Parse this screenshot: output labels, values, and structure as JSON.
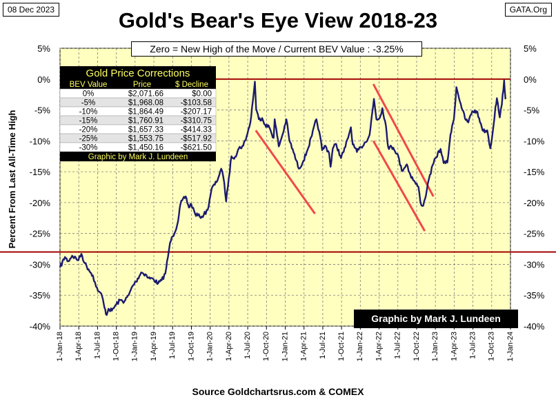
{
  "header": {
    "date": "08 Dec 2023",
    "site": "GATA.Org",
    "title": "Gold's Bear's Eye View 2018-23",
    "subtitle": "Zero = New High of the Move / Current  BEV Value : -3.25%",
    "credit": "Graphic by Mark J. Lundeen",
    "source": "Source Goldchartsrus.com & COMEX",
    "ylabel": "Percent  From  Last  All-Time  High"
  },
  "table": {
    "title": "Gold Price Corrections",
    "columns": [
      "BEV Value",
      "Price",
      "$ Decline"
    ],
    "rows": [
      [
        "0%",
        "$2,071.66",
        "$0.00"
      ],
      [
        "-5%",
        "$1,968.08",
        "-$103.58"
      ],
      [
        "-10%",
        "$1,864.49",
        "-$207.17"
      ],
      [
        "-15%",
        "$1,760.91",
        "-$310.75"
      ],
      [
        "-20%",
        "$1,657.33",
        "-$414.33"
      ],
      [
        "-25%",
        "$1,553.75",
        "-$517.92"
      ],
      [
        "-30%",
        "$1,450.16",
        "-$621.50"
      ]
    ],
    "footer": "Graphic by Mark J. Lundeen"
  },
  "colors": {
    "plot_bg": "#FFFFC0",
    "series": "#1A1A6E",
    "hline": "#A00000",
    "trend": "#F04848",
    "grid": "#7A7A7A"
  },
  "chart_data": {
    "type": "line",
    "title": "Gold's Bear's Eye View 2018-23",
    "ylabel": "Percent  From  Last  All-Time  High",
    "ylim": [
      -40,
      5
    ],
    "yticks": [
      5,
      0,
      -5,
      -10,
      -15,
      -20,
      -25,
      -30,
      -35,
      -40
    ],
    "ytick_labels": [
      "5%",
      "0%",
      "-5%",
      "-10%",
      "-15%",
      "-20%",
      "-25%",
      "-30%",
      "-35%",
      "-40%"
    ],
    "xlim": [
      "2018-01-01",
      "2024-01-01"
    ],
    "xtick_labels": [
      "1-Jan-18",
      "1-Apr-18",
      "1-Jul-18",
      "1-Oct-18",
      "1-Jan-19",
      "1-Apr-19",
      "1-Jul-19",
      "1-Oct-19",
      "1-Jan-20",
      "1-Apr-20",
      "1-Jul-20",
      "1-Oct-20",
      "1-Jan-21",
      "1-Apr-21",
      "1-Jul-21",
      "1-Oct-21",
      "1-Jan-22",
      "1-Apr-22",
      "1-Jul-22",
      "1-Oct-22",
      "1-Jan-23",
      "1-Apr-23",
      "1-Jul-23",
      "1-Oct-23",
      "1-Jan-24"
    ],
    "grid": true,
    "series": [
      {
        "name": "",
        "x": [
          "2018-01-01",
          "2018-01-25",
          "2018-02-10",
          "2018-03-01",
          "2018-04-01",
          "2018-04-15",
          "2018-05-01",
          "2018-05-20",
          "2018-06-10",
          "2018-06-25",
          "2018-07-10",
          "2018-07-25",
          "2018-08-05",
          "2018-08-16",
          "2018-08-25",
          "2018-09-10",
          "2018-10-01",
          "2018-10-20",
          "2018-11-10",
          "2018-12-01",
          "2018-12-20",
          "2019-01-05",
          "2019-01-31",
          "2019-02-20",
          "2019-03-07",
          "2019-04-01",
          "2019-04-23",
          "2019-05-10",
          "2019-05-28",
          "2019-06-10",
          "2019-06-20",
          "2019-07-03",
          "2019-07-25",
          "2019-08-10",
          "2019-09-04",
          "2019-09-20",
          "2019-10-01",
          "2019-10-20",
          "2019-11-12",
          "2019-12-01",
          "2019-12-20",
          "2020-01-08",
          "2020-02-01",
          "2020-02-24",
          "2020-03-10",
          "2020-03-19",
          "2020-04-01",
          "2020-04-14",
          "2020-05-01",
          "2020-05-20",
          "2020-06-10",
          "2020-07-01",
          "2020-07-15",
          "2020-07-27",
          "2020-08-06",
          "2020-08-12",
          "2020-08-25",
          "2020-09-10",
          "2020-09-25",
          "2020-10-15",
          "2020-11-05",
          "2020-11-10",
          "2020-11-30",
          "2020-12-20",
          "2021-01-06",
          "2021-01-20",
          "2021-02-10",
          "2021-03-08",
          "2021-03-30",
          "2021-04-15",
          "2021-05-10",
          "2021-06-01",
          "2021-06-15",
          "2021-06-29",
          "2021-07-15",
          "2021-08-02",
          "2021-08-09",
          "2021-08-20",
          "2021-09-05",
          "2021-09-29",
          "2021-10-20",
          "2021-11-16",
          "2021-11-25",
          "2021-12-15",
          "2022-01-05",
          "2022-01-25",
          "2022-02-15",
          "2022-03-08",
          "2022-03-20",
          "2022-04-05",
          "2022-04-18",
          "2022-05-05",
          "2022-05-16",
          "2022-06-10",
          "2022-06-30",
          "2022-07-21",
          "2022-08-15",
          "2022-09-01",
          "2022-09-28",
          "2022-10-10",
          "2022-10-20",
          "2022-11-03",
          "2022-11-20",
          "2022-12-05",
          "2023-01-01",
          "2023-01-26",
          "2023-02-10",
          "2023-02-28",
          "2023-03-15",
          "2023-04-01",
          "2023-04-13",
          "2023-05-04",
          "2023-05-25",
          "2023-06-10",
          "2023-06-29",
          "2023-07-20",
          "2023-08-10",
          "2023-08-21",
          "2023-09-10",
          "2023-09-25",
          "2023-10-05",
          "2023-10-20",
          "2023-10-27",
          "2023-11-10",
          "2023-11-20",
          "2023-12-01",
          "2023-12-04",
          "2023-12-08"
        ],
        "y": [
          -30.5,
          -28.8,
          -29.5,
          -28.6,
          -29.3,
          -28.3,
          -29.8,
          -30.8,
          -31.8,
          -33.6,
          -34.4,
          -35.2,
          -37.0,
          -38.2,
          -37.2,
          -37.5,
          -36.5,
          -35.8,
          -36.0,
          -35.0,
          -33.5,
          -32.8,
          -31.3,
          -31.6,
          -32.2,
          -32.4,
          -33.1,
          -32.6,
          -31.5,
          -28.8,
          -26.5,
          -25.5,
          -23.6,
          -20.2,
          -19.0,
          -20.8,
          -20.2,
          -21.8,
          -22.3,
          -22.0,
          -21.2,
          -17.8,
          -16.7,
          -14.5,
          -16.8,
          -19.8,
          -16.0,
          -12.5,
          -12.6,
          -11.2,
          -10.8,
          -8.8,
          -7.0,
          -3.5,
          -0.4,
          -4.8,
          -6.5,
          -6.3,
          -7.4,
          -7.8,
          -9.5,
          -6.5,
          -10.9,
          -8.8,
          -6.5,
          -9.8,
          -11.9,
          -14.5,
          -13.2,
          -11.8,
          -9.2,
          -6.5,
          -8.5,
          -11.5,
          -10.8,
          -12.0,
          -14.2,
          -11.2,
          -10.5,
          -12.8,
          -11.0,
          -7.8,
          -10.6,
          -11.8,
          -11.0,
          -10.2,
          -9.0,
          -3.2,
          -6.5,
          -6.3,
          -4.7,
          -7.5,
          -11.0,
          -11.1,
          -12.1,
          -14.8,
          -13.8,
          -15.5,
          -17.0,
          -17.4,
          -20.0,
          -20.5,
          -18.0,
          -15.5,
          -12.8,
          -11.3,
          -13.6,
          -13.5,
          -9.0,
          -6.5,
          -1.3,
          -4.0,
          -6.4,
          -7.0,
          -5.2,
          -5.2,
          -7.2,
          -8.4,
          -8.3,
          -11.2,
          -9.0,
          -4.5,
          -3.1,
          -6.2,
          -4.1,
          -0.2,
          -1.8,
          -3.25
        ]
      }
    ],
    "reference_lines": [
      {
        "y": 0
      },
      {
        "y": -28
      }
    ],
    "trend_lines": [
      {
        "x": [
          "2020-08-10",
          "2021-05-25"
        ],
        "y": [
          -8.3,
          -21.8
        ]
      },
      {
        "x": [
          "2022-03-05",
          "2022-12-22"
        ],
        "y": [
          -0.8,
          -19.0
        ]
      },
      {
        "x": [
          "2022-03-05",
          "2022-11-10"
        ],
        "y": [
          -10.0,
          -24.6
        ]
      }
    ]
  }
}
